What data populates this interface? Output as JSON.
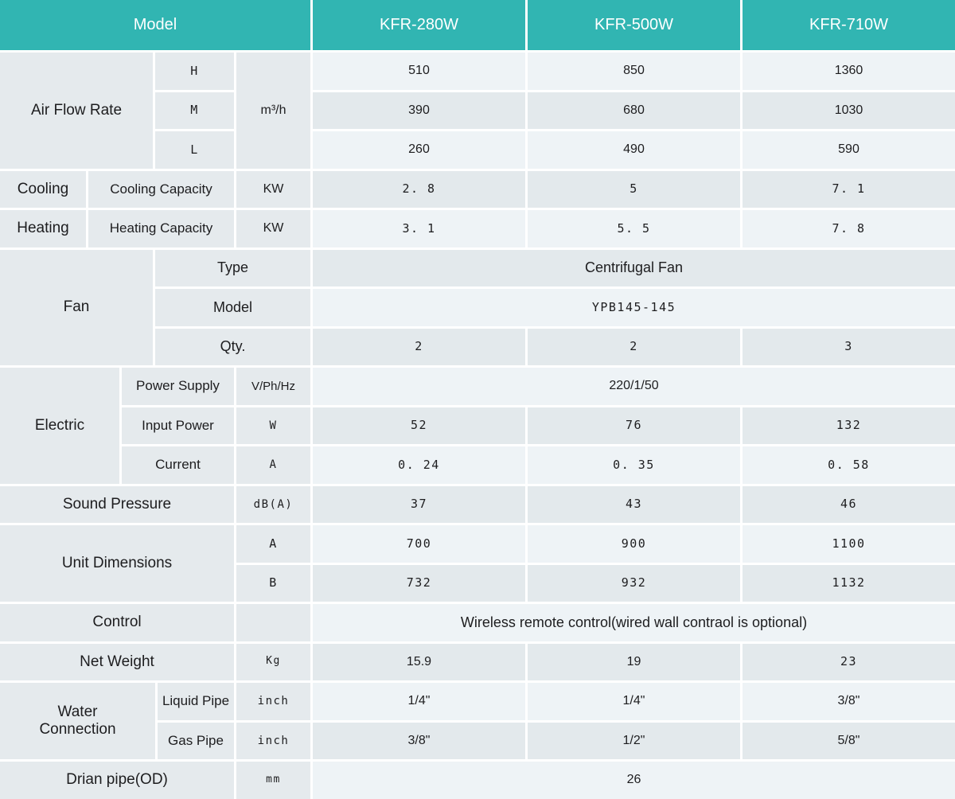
{
  "colors": {
    "header_bg": "#31b5b2",
    "header_text": "#ffffff",
    "label_cell_bg": "#e5eaed",
    "value_row_light": "#eef3f6",
    "value_row_dark": "#e3e9ec",
    "text": "#1d1d1f",
    "grid_lines": "#ffffff"
  },
  "header": {
    "model_label": "Model",
    "models": [
      "KFR-280W",
      "KFR-500W",
      "KFR-710W"
    ]
  },
  "air_flow_rate": {
    "label": "Air Flow Rate",
    "unit": "m³/h",
    "rows": [
      {
        "level": "H",
        "values": [
          "510",
          "850",
          "1360"
        ]
      },
      {
        "level": "M",
        "values": [
          "390",
          "680",
          "1030"
        ]
      },
      {
        "level": "L",
        "values": [
          "260",
          "490",
          "590"
        ]
      }
    ]
  },
  "cooling": {
    "label": "Cooling",
    "sub": "Cooling Capacity",
    "unit": "KW",
    "values": [
      "2. 8",
      "5",
      "7. 1"
    ]
  },
  "heating": {
    "label": "Heating",
    "sub": "Heating Capacity",
    "unit": "KW",
    "values": [
      "3. 1",
      "5. 5",
      "7. 8"
    ]
  },
  "fan": {
    "label": "Fan",
    "type_label": "Type",
    "type_value": "Centrifugal Fan",
    "model_label": "Model",
    "model_value": "YPB145-145",
    "qty_label": "Qty.",
    "qty_values": [
      "2",
      "2",
      "3"
    ]
  },
  "electric": {
    "label": "Electric",
    "power_supply": {
      "sub": "Power Supply",
      "unit": "V/Ph/Hz",
      "value": "220/1/50"
    },
    "input_power": {
      "sub": "Input Power",
      "unit": "W",
      "values": [
        "52",
        "76",
        "132"
      ]
    },
    "current": {
      "sub": "Current",
      "unit": "A",
      "values": [
        "0. 24",
        "0. 35",
        "0. 58"
      ]
    }
  },
  "sound_pressure": {
    "label": "Sound Pressure",
    "unit": "dB(A)",
    "values": [
      "37",
      "43",
      "46"
    ]
  },
  "unit_dimensions": {
    "label": "Unit Dimensions",
    "rows": [
      {
        "dim": "A",
        "values": [
          "700",
          "900",
          "1100"
        ]
      },
      {
        "dim": "B",
        "values": [
          "732",
          "932",
          "1132"
        ]
      }
    ]
  },
  "control": {
    "label": "Control",
    "unit": "",
    "value": "Wireless remote control(wired wall contraol is optional)"
  },
  "net_weight": {
    "label": "Net Weight",
    "unit": "Kg",
    "values": [
      "15.9",
      "19",
      "23"
    ]
  },
  "water_connection": {
    "label": "Water Connection",
    "rows": [
      {
        "sub": "Liquid Pipe",
        "unit": "inch",
        "values": [
          "1/4\"",
          "1/4\"",
          "3/8\""
        ]
      },
      {
        "sub": "Gas Pipe",
        "unit": "inch",
        "values": [
          "3/8\"",
          "1/2\"",
          "5/8\""
        ]
      }
    ]
  },
  "drain_pipe": {
    "label": "Drian pipe(OD)",
    "unit": "mm",
    "value": "26"
  }
}
